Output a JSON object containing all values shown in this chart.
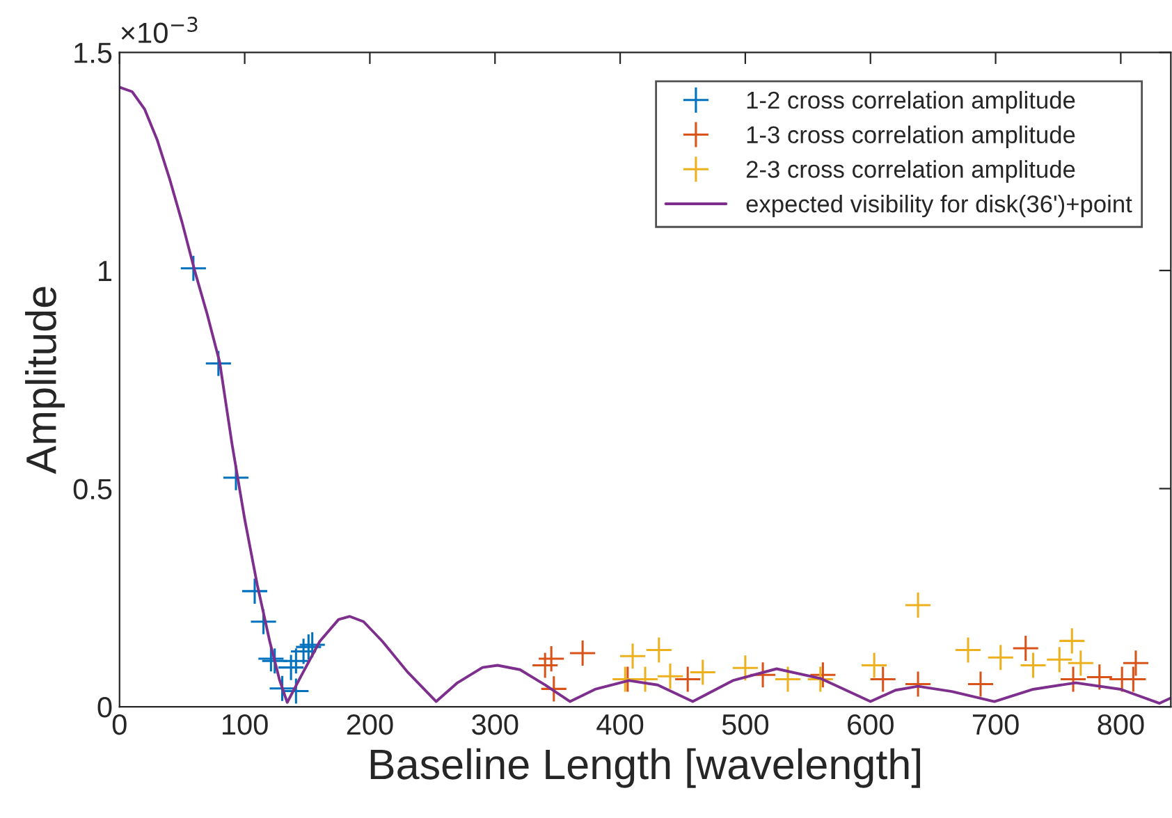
{
  "chart_data": {
    "type": "scatter",
    "xlabel": "Baseline Length [wavelength]",
    "ylabel": "Amplitude",
    "annotations": [
      "×10$^{−3}$"
    ],
    "xlim": [
      0,
      840
    ],
    "xticks": [
      0,
      100,
      200,
      300,
      400,
      500,
      600,
      700,
      800
    ],
    "ylim": [
      0,
      1.5
    ],
    "yticks": [
      0,
      0.5,
      1,
      1.5
    ],
    "grid": false,
    "legend": "top right",
    "series": [
      {
        "name": "1-2 cross correlation amplitude",
        "marker": "cross",
        "color": "#0072bd",
        "x": [
          59,
          79,
          93,
          108,
          115,
          121,
          124,
          130,
          141,
          137,
          141,
          147,
          151,
          154
        ],
        "values": [
          1.005,
          0.787,
          0.525,
          0.265,
          0.195,
          0.11,
          0.105,
          0.042,
          0.036,
          0.09,
          0.105,
          0.127,
          0.137,
          0.142
        ]
      },
      {
        "name": "1-3 cross correlation amplitude",
        "marker": "cross",
        "color": "#d95319",
        "x": [
          340,
          345,
          347,
          370,
          406,
          454,
          514,
          562,
          610,
          638,
          688,
          724,
          762,
          783,
          801,
          810,
          812
        ],
        "values": [
          0.095,
          0.11,
          0.041,
          0.123,
          0.063,
          0.063,
          0.073,
          0.073,
          0.063,
          0.052,
          0.052,
          0.134,
          0.063,
          0.068,
          0.063,
          0.063,
          0.1
        ]
      },
      {
        "name": "2-3 cross correlation amplitude",
        "marker": "cross",
        "color": "#edb120",
        "x": [
          404,
          410,
          420,
          431,
          440,
          466,
          500,
          534,
          560,
          603,
          638,
          678,
          704,
          730,
          751,
          761,
          768
        ],
        "values": [
          0.063,
          0.116,
          0.063,
          0.13,
          0.07,
          0.079,
          0.089,
          0.063,
          0.063,
          0.095,
          0.233,
          0.13,
          0.113,
          0.095,
          0.108,
          0.151,
          0.1
        ]
      },
      {
        "name": "expected visibility for disk(36')+point",
        "type": "line",
        "marker": "none",
        "line_style": "solid",
        "color": "#7e2f8e",
        "x": [
          0,
          10,
          20,
          30,
          40,
          50,
          60,
          70,
          80,
          90,
          100,
          110,
          120,
          128,
          134,
          145,
          160,
          175,
          184,
          195,
          210,
          230,
          253,
          270,
          290,
          302,
          320,
          340,
          360,
          380,
          407,
          430,
          458,
          490,
          525,
          560,
          600,
          620,
          638,
          665,
          699,
          730,
          764,
          800,
          831,
          840
        ],
        "values": [
          1.42,
          1.41,
          1.37,
          1.3,
          1.21,
          1.11,
          1.0,
          0.9,
          0.79,
          0.6,
          0.43,
          0.28,
          0.15,
          0.06,
          0.01,
          0.07,
          0.15,
          0.2,
          0.207,
          0.195,
          0.15,
          0.08,
          0.012,
          0.055,
          0.09,
          0.095,
          0.085,
          0.05,
          0.012,
          0.04,
          0.06,
          0.05,
          0.012,
          0.06,
          0.087,
          0.065,
          0.012,
          0.038,
          0.047,
          0.035,
          0.012,
          0.04,
          0.055,
          0.04,
          0.008,
          0.02
        ]
      }
    ]
  }
}
